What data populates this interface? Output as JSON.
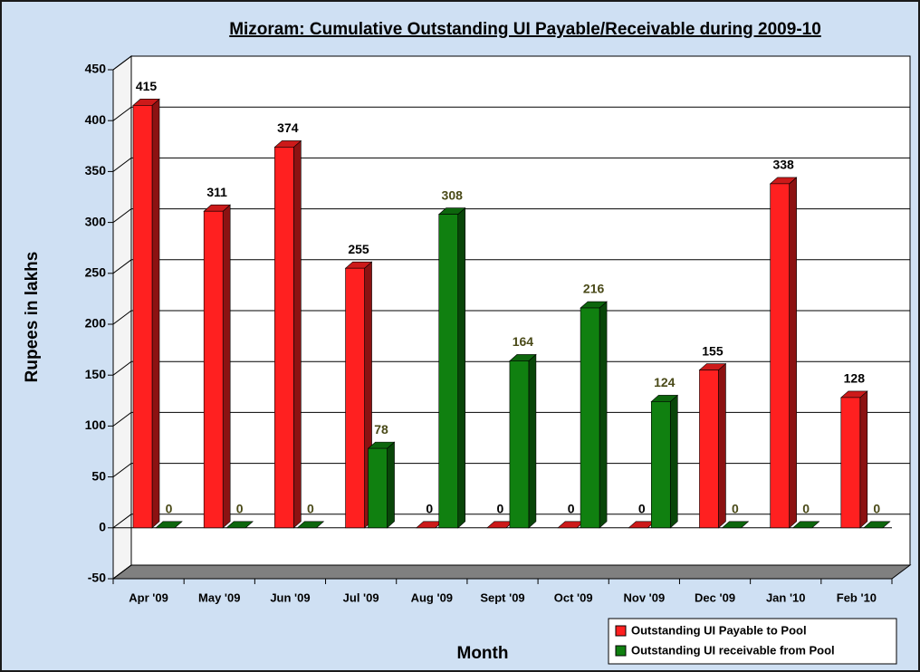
{
  "chart_data": {
    "type": "bar3d",
    "title": "Mizoram: Cumulative Outstanding UI Payable/Receivable during 2009-10",
    "x_label": "Month",
    "y_label": "Rupees in lakhs",
    "categories": [
      "Apr '09",
      "May '09",
      "Jun '09",
      "Jul '09",
      "Aug '09",
      "Sept '09",
      "Oct '09",
      "Nov '09",
      "Dec '09",
      "Jan '10",
      "Feb '10"
    ],
    "series": [
      {
        "name": "Outstanding UI Payable to Pool",
        "color": "#ff2020",
        "values": [
          415,
          311,
          374,
          255,
          0,
          0,
          0,
          0,
          155,
          338,
          128
        ]
      },
      {
        "name": "Outstanding UI receivable from Pool",
        "color": "#108010",
        "values": [
          0,
          0,
          0,
          78,
          308,
          164,
          216,
          124,
          0,
          0,
          0
        ]
      }
    ],
    "ylim": [
      -50,
      450
    ],
    "yticks": [
      -50,
      0,
      50,
      100,
      150,
      200,
      250,
      300,
      350,
      400,
      450
    ],
    "grid": true,
    "legend": "lower right"
  }
}
